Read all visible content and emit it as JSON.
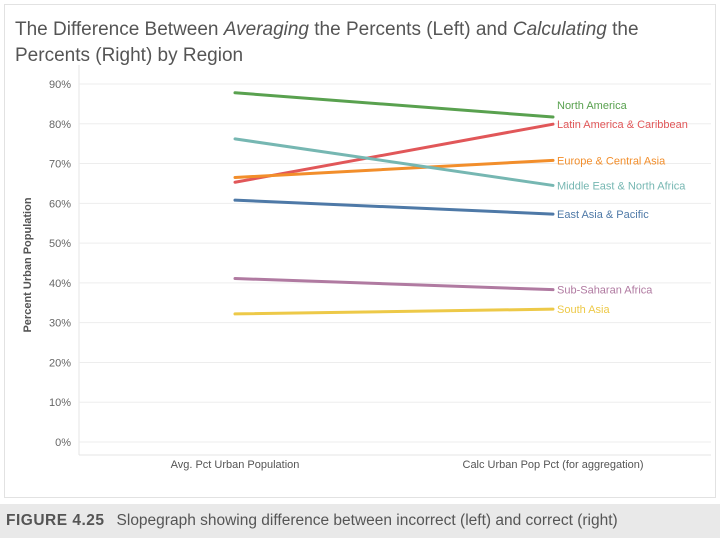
{
  "title": {
    "part1": "The Difference Between ",
    "em1": "Averaging",
    "part2": " the Percents (Left) and ",
    "em2": "Calculating",
    "part3": " the Percents (Right) by Region"
  },
  "caption": {
    "label": "FIGURE 4.25",
    "text": "Slopegraph showing difference between incorrect (left) and correct (right)"
  },
  "chart_data": {
    "type": "line",
    "ylabel": "Percent Urban Population",
    "categories": [
      "Avg. Pct Urban Population",
      "Calc Urban Pop Pct (for aggregation)"
    ],
    "yticks": [
      "0%",
      "10%",
      "20%",
      "30%",
      "40%",
      "50%",
      "60%",
      "70%",
      "80%",
      "90%"
    ],
    "ylim": [
      0,
      90
    ],
    "grid": true,
    "series": [
      {
        "name": "North America",
        "values": [
          87.8,
          81.7
        ],
        "color": "#59a14f"
      },
      {
        "name": "Latin America & Caribbean",
        "values": [
          65.3,
          79.9
        ],
        "color": "#e15759"
      },
      {
        "name": "Europe & Central Asia",
        "values": [
          66.5,
          70.8
        ],
        "color": "#f28e2b"
      },
      {
        "name": "Middle East & North Africa",
        "values": [
          76.2,
          64.5
        ],
        "color": "#76b7b2"
      },
      {
        "name": "East Asia & Pacific",
        "values": [
          60.8,
          57.3
        ],
        "color": "#4e79a7"
      },
      {
        "name": "Sub-Saharan Africa",
        "values": [
          41.1,
          38.3
        ],
        "color": "#b07aa1"
      },
      {
        "name": "South Asia",
        "values": [
          32.2,
          33.4
        ],
        "color": "#edc948"
      }
    ]
  }
}
